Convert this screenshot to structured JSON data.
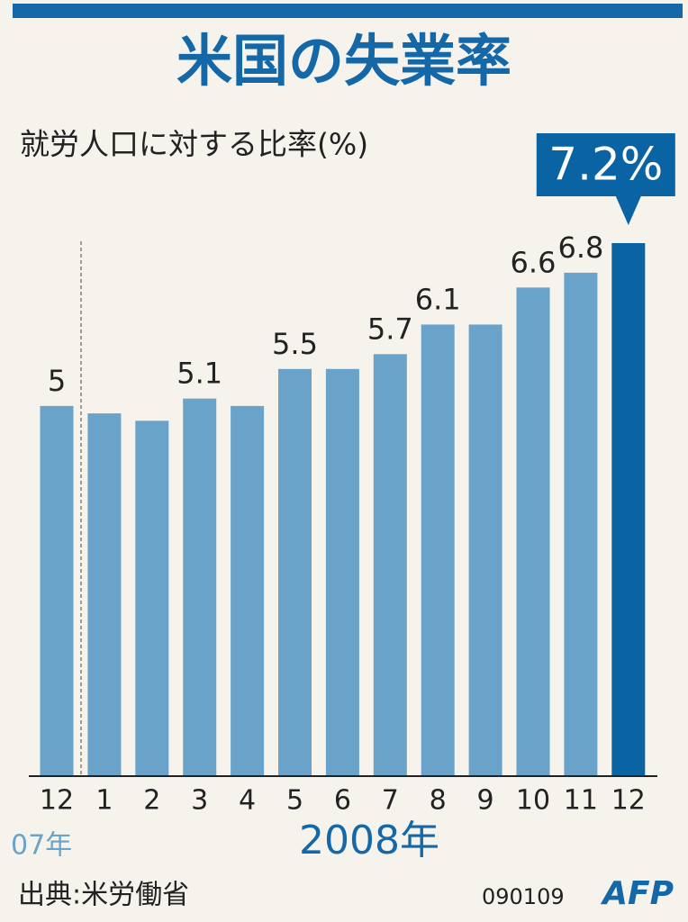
{
  "chart_data": {
    "type": "bar",
    "title": "米国の失業率",
    "subtitle": "就労人口に対する比率(%)",
    "categories": [
      "12",
      "1",
      "2",
      "3",
      "4",
      "5",
      "6",
      "7",
      "8",
      "9",
      "10",
      "11",
      "12"
    ],
    "values": [
      5,
      4.9,
      4.8,
      5.1,
      5.0,
      5.5,
      5.5,
      5.7,
      6.1,
      6.1,
      6.6,
      6.8,
      7.2
    ],
    "value_labels": [
      "5",
      null,
      null,
      "5.1",
      null,
      "5.5",
      null,
      "5.7",
      "6.1",
      null,
      "6.6",
      "6.8",
      "7.2%"
    ],
    "colors": [
      "#6aa3c9",
      "#6aa3c9",
      "#6aa3c9",
      "#6aa3c9",
      "#6aa3c9",
      "#6aa3c9",
      "#6aa3c9",
      "#6aa3c9",
      "#6aa3c9",
      "#6aa3c9",
      "#6aa3c9",
      "#6aa3c9",
      "#0a64a4"
    ],
    "year_labels": [
      "07年",
      "2008年"
    ],
    "source": "出典:米労働省",
    "date_code": "090109",
    "credit": "AFP"
  }
}
